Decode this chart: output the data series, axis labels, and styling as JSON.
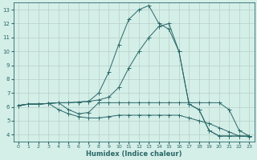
{
  "xlabel": "Humidex (Indice chaleur)",
  "xlim": [
    -0.5,
    23.5
  ],
  "ylim": [
    3.5,
    13.5
  ],
  "xticks": [
    0,
    1,
    2,
    3,
    4,
    5,
    6,
    7,
    8,
    9,
    10,
    11,
    12,
    13,
    14,
    15,
    16,
    17,
    18,
    19,
    20,
    21,
    22,
    23
  ],
  "yticks": [
    4,
    5,
    6,
    7,
    8,
    9,
    10,
    11,
    12,
    13
  ],
  "background_color": "#d4eee8",
  "grid_color": "#b8cfc8",
  "line_color": "#2a6868",
  "lines": [
    {
      "x": [
        0,
        1,
        2,
        3,
        4,
        5,
        6,
        7,
        8,
        9,
        10,
        11,
        12,
        13,
        14,
        15,
        16,
        17,
        18,
        19,
        20,
        21,
        22,
        23
      ],
      "y": [
        6.1,
        6.2,
        6.2,
        6.25,
        6.3,
        6.3,
        6.35,
        6.4,
        7.0,
        8.5,
        10.5,
        12.3,
        13.0,
        13.3,
        12.0,
        11.6,
        10.0,
        6.2,
        5.8,
        4.3,
        3.9,
        3.9,
        3.9,
        3.9
      ]
    },
    {
      "x": [
        0,
        1,
        2,
        3,
        4,
        5,
        6,
        7,
        8,
        9,
        10,
        11,
        12,
        13,
        14,
        15,
        16,
        17,
        18,
        19,
        20,
        21,
        22,
        23
      ],
      "y": [
        6.1,
        6.2,
        6.2,
        6.25,
        6.3,
        6.3,
        6.35,
        6.4,
        6.5,
        6.7,
        7.4,
        8.8,
        10.0,
        11.0,
        11.8,
        12.0,
        10.0,
        6.2,
        5.8,
        4.3,
        3.9,
        3.9,
        3.9,
        3.9
      ]
    },
    {
      "x": [
        0,
        1,
        2,
        3,
        4,
        5,
        6,
        7,
        8,
        9,
        10,
        11,
        12,
        13,
        14,
        15,
        16,
        17,
        18,
        19,
        20,
        21,
        22,
        23
      ],
      "y": [
        6.1,
        6.2,
        6.2,
        6.25,
        6.3,
        5.8,
        5.5,
        5.6,
        6.3,
        6.3,
        6.3,
        6.3,
        6.3,
        6.3,
        6.3,
        6.3,
        6.3,
        6.3,
        6.3,
        6.3,
        6.3,
        5.8,
        4.3,
        3.9
      ]
    },
    {
      "x": [
        0,
        1,
        2,
        3,
        4,
        5,
        6,
        7,
        8,
        9,
        10,
        11,
        12,
        13,
        14,
        15,
        16,
        17,
        18,
        19,
        20,
        21,
        22,
        23
      ],
      "y": [
        6.1,
        6.2,
        6.2,
        6.25,
        5.8,
        5.5,
        5.3,
        5.2,
        5.2,
        5.3,
        5.4,
        5.4,
        5.4,
        5.4,
        5.4,
        5.4,
        5.4,
        5.2,
        5.0,
        4.8,
        4.5,
        4.2,
        3.9,
        3.85
      ]
    }
  ]
}
